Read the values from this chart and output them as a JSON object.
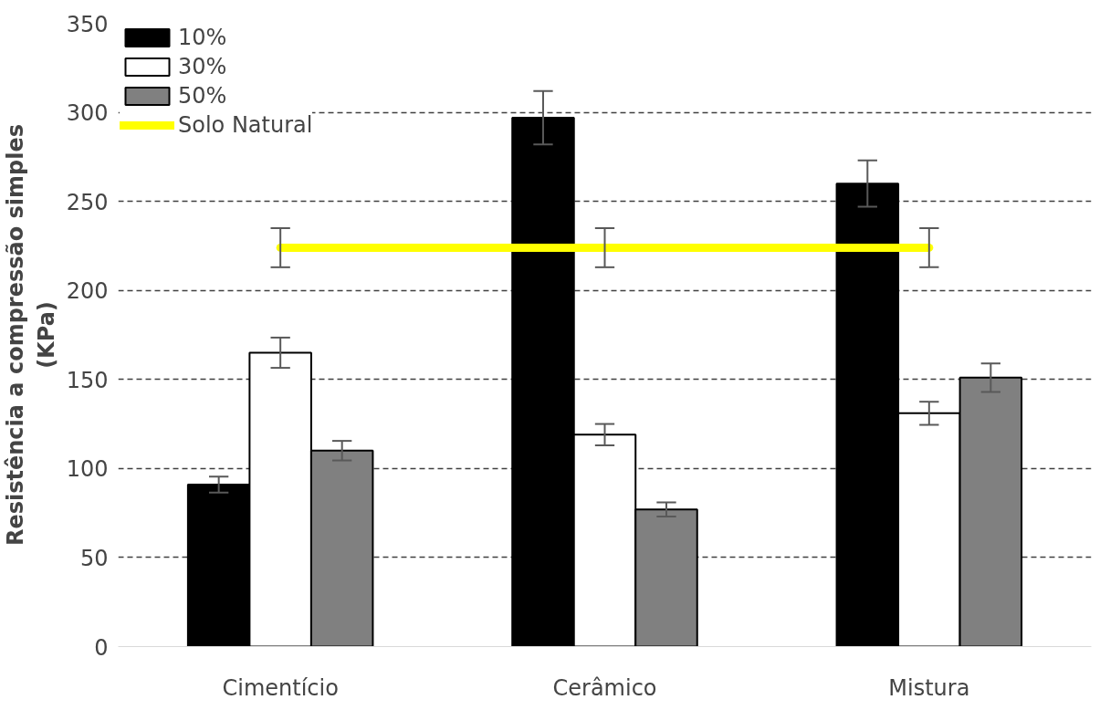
{
  "chart_data": {
    "type": "bar",
    "ylabel": "Resistência a compressão simples\n(KPa)",
    "categories": [
      "Cimentício",
      "Cerâmico",
      "Mistura"
    ],
    "series": [
      {
        "name": "10%",
        "color": "#000000",
        "values": [
          91,
          297,
          260
        ],
        "errors": [
          4.5,
          15,
          13
        ]
      },
      {
        "name": "30%",
        "color": "#ffffff",
        "values": [
          165,
          119,
          131
        ],
        "errors": [
          8.5,
          6,
          6.5
        ]
      },
      {
        "name": "50%",
        "color": "#808080",
        "values": [
          110,
          77,
          151
        ],
        "errors": [
          5.5,
          4,
          8
        ]
      },
      {
        "name": "Solo Natural",
        "type": "line",
        "color": "#ffff00",
        "values": [
          224,
          224,
          224
        ],
        "errors": [
          11,
          11,
          11
        ]
      }
    ],
    "ylim": [
      0,
      350
    ],
    "yticks": [
      0,
      50,
      100,
      150,
      200,
      250,
      300,
      350
    ],
    "grid": "y",
    "legend": "top left"
  }
}
